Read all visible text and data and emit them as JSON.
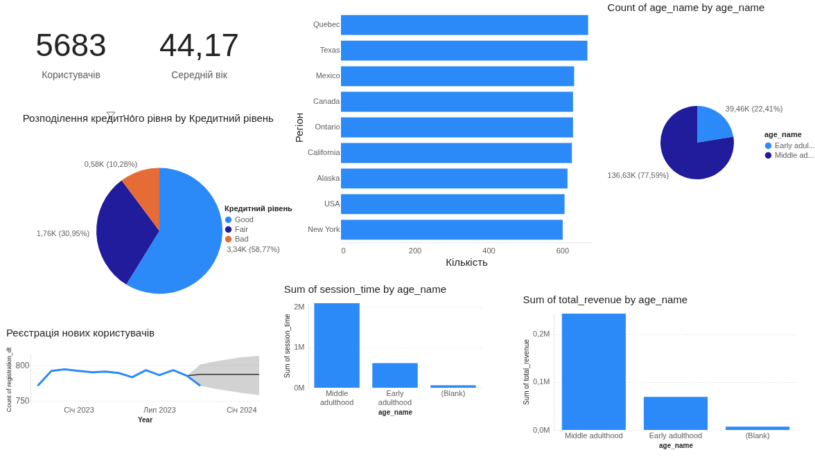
{
  "chart_data": [
    {
      "type": "other",
      "annotations": [
        "5683",
        "Користувачів",
        "44,17",
        "Середній вік"
      ]
    },
    {
      "type": "bar",
      "orientation": "horizontal",
      "xlabel": "Кількість",
      "ylabel": "Регіон",
      "categories": [
        "Quebec",
        "Texas",
        "Mexico",
        "Canada",
        "Ontario",
        "California",
        "Alaska",
        "USA",
        "New York"
      ],
      "values": [
        670,
        668,
        632,
        629,
        629,
        626,
        614,
        606,
        601
      ],
      "color": "#2b8af7",
      "xlim": [
        0,
        680
      ],
      "xticks": [
        0,
        200,
        400,
        600
      ]
    },
    {
      "type": "pie",
      "title": "Count of age_name by age_name",
      "legend_title": "age_name",
      "legend": "right",
      "categories": [
        "Early adul...",
        "Middle ad..."
      ],
      "values": [
        39460,
        136630
      ],
      "colors": [
        "#2b8af7",
        "#201c9c"
      ],
      "value_labels": [
        "39,46K (22,41%)",
        "136,63K (77,59%)"
      ]
    },
    {
      "type": "pie",
      "title": "Розподілення кредитного рівня by Кредитний рівень",
      "legend_title": "Кредитний рівень",
      "legend": "right",
      "categories": [
        "Good",
        "Fair",
        "Bad"
      ],
      "values": [
        3340,
        1760,
        580
      ],
      "colors": [
        "#2b8af7",
        "#201c9c",
        "#e66c37"
      ],
      "value_labels": [
        "3,34K (58,77%)",
        "1,76K (30,95%)",
        "0,58K (10,28%)"
      ]
    },
    {
      "type": "line",
      "title": "Реєстрація нових користувачів",
      "xlabel": "Year",
      "ylabel": "Count of registration_dt",
      "xlim": [
        "2022-09-15",
        "2024-02-10"
      ],
      "xticks": [
        {
          "value": "2023-01-01",
          "label": "Січ 2023"
        },
        {
          "value": "2023-07-01",
          "label": "Лип 2023"
        },
        {
          "value": "2024-01-01",
          "label": "Січ 2024"
        }
      ],
      "ylim": [
        745,
        815
      ],
      "yticks": [
        750,
        800
      ],
      "grid": "y",
      "series": [
        {
          "color": "#333333",
          "x": [
            "2023-09-01",
            "2023-10-01",
            "2023-11-01",
            "2023-12-01",
            "2024-01-01",
            "2024-02-10"
          ],
          "values": [
            785,
            787,
            787,
            787,
            787,
            787
          ],
          "lower": [
            785,
            771,
            767,
            764,
            761,
            758
          ],
          "upper": [
            785,
            801,
            805,
            808,
            811,
            813
          ]
        },
        {
          "color": "#2b8af7",
          "x": [
            "2022-10-01",
            "2022-11-01",
            "2022-12-01",
            "2023-01-01",
            "2023-02-01",
            "2023-03-01",
            "2023-04-01",
            "2023-05-01",
            "2023-06-01",
            "2023-07-01",
            "2023-08-01",
            "2023-09-01",
            "2023-10-01"
          ],
          "values": [
            771,
            792,
            794,
            792,
            790,
            791,
            789,
            783,
            793,
            786,
            793,
            785,
            771
          ]
        }
      ]
    },
    {
      "type": "bar",
      "title": "Sum of session_time by age_name",
      "xlabel": "age_name",
      "ylabel": "Sum of session_time",
      "categories": [
        "Middle adulthood",
        "Early adulthood",
        "(Blank)"
      ],
      "values": [
        2100000,
        610000,
        60000
      ],
      "color": "#2b8af7",
      "ylim": [
        0,
        2100000
      ],
      "yticks": [
        {
          "value": 0,
          "label": "0M"
        },
        {
          "value": 1000000,
          "label": "1M"
        },
        {
          "value": 2000000,
          "label": "2M"
        }
      ],
      "grid": "y"
    },
    {
      "type": "bar",
      "title": "Sum of total_revenue by age_name",
      "xlabel": "age_name",
      "ylabel": "Sum of total_revenue",
      "categories": [
        "Middle adulthood",
        "Early adulthood",
        "(Blank)"
      ],
      "values": [
        243000,
        69000,
        7000
      ],
      "color": "#2b8af7",
      "ylim": [
        0,
        243000
      ],
      "yticks": [
        {
          "value": 0,
          "label": "0,0M"
        },
        {
          "value": 100000,
          "label": "0,1M"
        },
        {
          "value": 200000,
          "label": "0,2M"
        }
      ],
      "grid": "y"
    }
  ]
}
